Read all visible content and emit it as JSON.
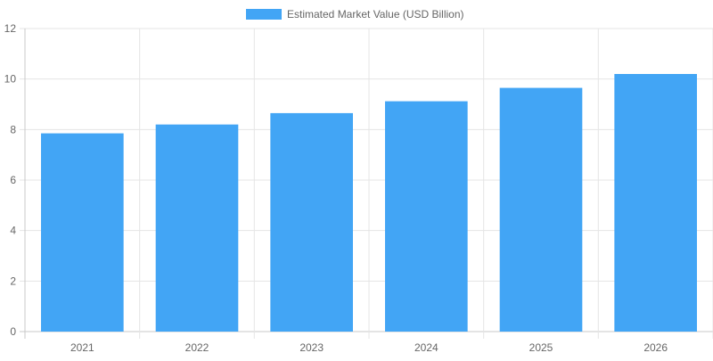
{
  "chart_data": {
    "type": "bar",
    "categories": [
      "2021",
      "2022",
      "2023",
      "2024",
      "2025",
      "2026"
    ],
    "series": [
      {
        "name": "Estimated Market Value (USD Billion)",
        "values": [
          7.85,
          8.2,
          8.65,
          9.12,
          9.65,
          10.2
        ],
        "color": "#42a5f5"
      }
    ],
    "ylim": [
      0,
      12
    ],
    "yticks": [
      0,
      2,
      4,
      6,
      8,
      10,
      12
    ],
    "grid": true,
    "legend": "top-center",
    "grid_color": "#e5e5e5",
    "axis_color": "#c8c8c8",
    "text_color": "#666666"
  }
}
